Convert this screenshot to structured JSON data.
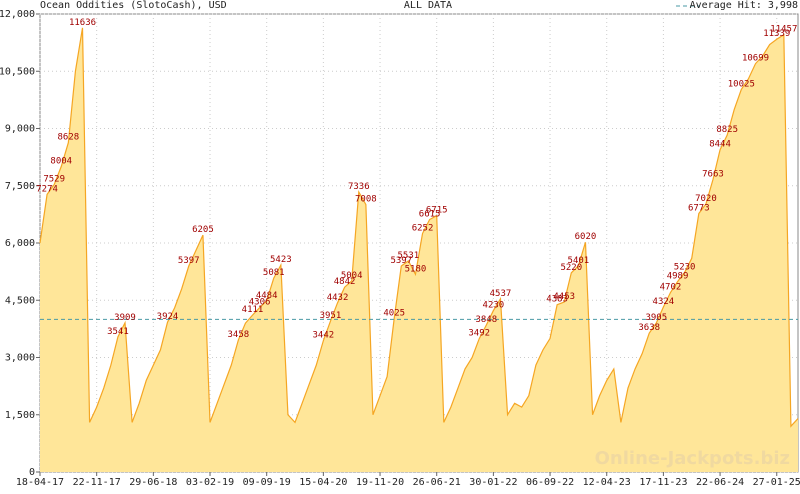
{
  "chart_data": {
    "type": "area",
    "title": "Ocean Oddities (SlotoCash), USD",
    "subtitle": "ALL DATA",
    "watermark": "Online-Jackpots.biz",
    "average": {
      "value": 3998,
      "label": "Average Hit: 3,998"
    },
    "color": "#f5a623",
    "fill": "#ffe699",
    "grid": true,
    "ylim": [
      0,
      12000
    ],
    "yticks": [
      0,
      {
        "value": 1500,
        "label": "1,500"
      },
      {
        "value": 3000,
        "label": "3,000"
      },
      {
        "value": 4500,
        "label": "4,500"
      },
      {
        "value": 6000,
        "label": "6,000"
      },
      {
        "value": 7500,
        "label": "7,500"
      },
      {
        "value": 9000,
        "label": "9,000"
      },
      {
        "value": 10500,
        "label": "10,500"
      },
      {
        "value": 12000,
        "label": "12,000"
      }
    ],
    "categories": [
      "18-04-17",
      null,
      null,
      null,
      null,
      null,
      null,
      null,
      "22-11-17",
      null,
      null,
      null,
      null,
      null,
      null,
      null,
      "29-06-18",
      null,
      null,
      null,
      null,
      null,
      null,
      null,
      "03-02-19",
      null,
      null,
      null,
      null,
      null,
      null,
      null,
      "09-09-19",
      null,
      null,
      null,
      null,
      null,
      null,
      null,
      "15-04-20",
      null,
      null,
      null,
      null,
      null,
      null,
      null,
      "19-11-20",
      null,
      null,
      null,
      null,
      null,
      null,
      null,
      "26-06-21",
      null,
      null,
      null,
      null,
      null,
      null,
      null,
      "30-01-22",
      null,
      null,
      null,
      null,
      null,
      null,
      null,
      "06-09-22",
      null,
      null,
      null,
      null,
      null,
      null,
      null,
      "12-04-23",
      null,
      null,
      null,
      null,
      null,
      null,
      null,
      "17-11-23",
      null,
      null,
      null,
      null,
      null,
      null,
      null,
      "22-06-24",
      null,
      null,
      null,
      null,
      null,
      null,
      null,
      "27-01-25",
      null,
      null,
      null
    ],
    "values": [
      6000,
      7274,
      7529,
      8004,
      8628,
      10500,
      11636,
      1300,
      1700,
      2200,
      2800,
      3541,
      3909,
      1300,
      1800,
      2400,
      2800,
      3200,
      3924,
      4300,
      4800,
      5397,
      5800,
      6205,
      1300,
      1800,
      2300,
      2800,
      3458,
      3900,
      4111,
      4306,
      4484,
      5081,
      5423,
      1500,
      1300,
      1800,
      2300,
      2800,
      3442,
      3951,
      4432,
      4842,
      5004,
      7336,
      7008,
      1500,
      2000,
      2500,
      4025,
      5397,
      5531,
      5180,
      6252,
      6615,
      6715,
      1300,
      1700,
      2200,
      2700,
      3000,
      3492,
      3848,
      4230,
      4537,
      1500,
      1800,
      1700,
      2000,
      2800,
      3200,
      3500,
      4383,
      4453,
      5220,
      5401,
      6020,
      1500,
      2000,
      2400,
      2700,
      1300,
      2200,
      2700,
      3100,
      3638,
      3905,
      4324,
      4702,
      4989,
      5230,
      5600,
      6773,
      7020,
      7663,
      8444,
      8825,
      9500,
      10025,
      10300,
      10699,
      10900,
      11200,
      11339,
      11457,
      1200,
      1400
    ],
    "annotations": [
      7274,
      7529,
      8004,
      8628,
      11636,
      3541,
      3909,
      3924,
      5397,
      6205,
      3458,
      4111,
      4306,
      4484,
      5081,
      5423,
      3442,
      3951,
      4432,
      4842,
      5004,
      7336,
      7008,
      4025,
      5397,
      5531,
      5180,
      6252,
      6615,
      6715,
      3492,
      3848,
      4230,
      4537,
      4383,
      4453,
      5220,
      5401,
      6020,
      3638,
      3905,
      4324,
      4702,
      4989,
      5230,
      6773,
      7020,
      7663,
      8444,
      8825,
      10025,
      10699,
      11339,
      11457
    ]
  }
}
